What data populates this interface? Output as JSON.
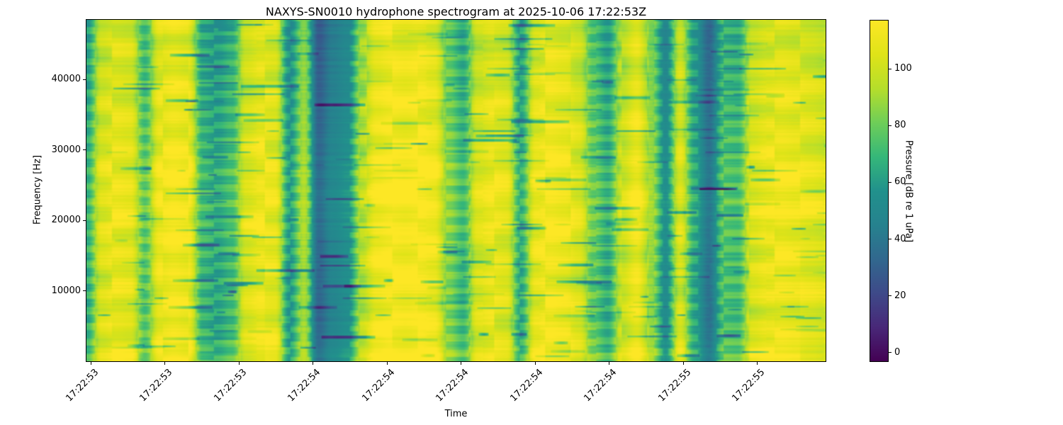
{
  "figure": {
    "title": "NAXYS-SN0010 hydrophone spectrogram at 2025-10-06 17:22:53Z",
    "xlabel": "Time",
    "ylabel": "Frequency [Hz]"
  },
  "colorbar": {
    "label": "Pressure [dB re 1 uPa]",
    "tick_labels": [
      "0",
      "20",
      "40",
      "60",
      "80",
      "100"
    ]
  },
  "chart_data": {
    "type": "heatmap",
    "subtype": "spectrogram",
    "title": "NAXYS-SN0010 hydrophone spectrogram at 2025-10-06 17:22:53Z",
    "xlabel": "Time",
    "ylabel": "Frequency [Hz]",
    "colormap": "viridis",
    "colorbar_label": "Pressure [dB re 1 uPa]",
    "colorbar_ticks": [
      0,
      20,
      40,
      60,
      80,
      100
    ],
    "clim": [
      -3,
      117
    ],
    "x_tick_labels": [
      "17:22:53",
      "17:22:53",
      "17:22:53",
      "17:22:54",
      "17:22:54",
      "17:22:54",
      "17:22:54",
      "17:22:54",
      "17:22:55",
      "17:22:55"
    ],
    "y_ticks": [
      10000,
      20000,
      30000,
      40000
    ],
    "ylim": [
      0,
      48500
    ],
    "grid": false,
    "legend": null,
    "time_envelope_db": [
      62,
      100,
      105,
      103,
      72,
      106,
      110,
      107,
      65,
      60,
      68,
      100,
      106,
      104,
      55,
      88,
      30,
      45,
      52,
      90,
      108,
      112,
      110,
      112,
      108,
      80,
      66,
      100,
      105,
      102,
      62,
      105,
      110,
      107,
      100,
      75,
      62,
      95,
      108,
      85,
      50,
      100,
      60,
      35,
      70,
      68,
      100,
      105,
      108,
      106,
      103,
      100
    ],
    "freq_offset_db": [
      8,
      3,
      2,
      3,
      5,
      6,
      5,
      3,
      1,
      -1,
      -2,
      -3
    ],
    "viridis_stops": [
      "#440154",
      "#482878",
      "#3e4a89",
      "#31688e",
      "#26828e",
      "#21918c",
      "#35b779",
      "#6ece58",
      "#b5de2b",
      "#dfe318",
      "#fde725"
    ]
  },
  "colors": {
    "background": "#ffffff",
    "text": "#000000",
    "axes_edge": "#000000"
  }
}
